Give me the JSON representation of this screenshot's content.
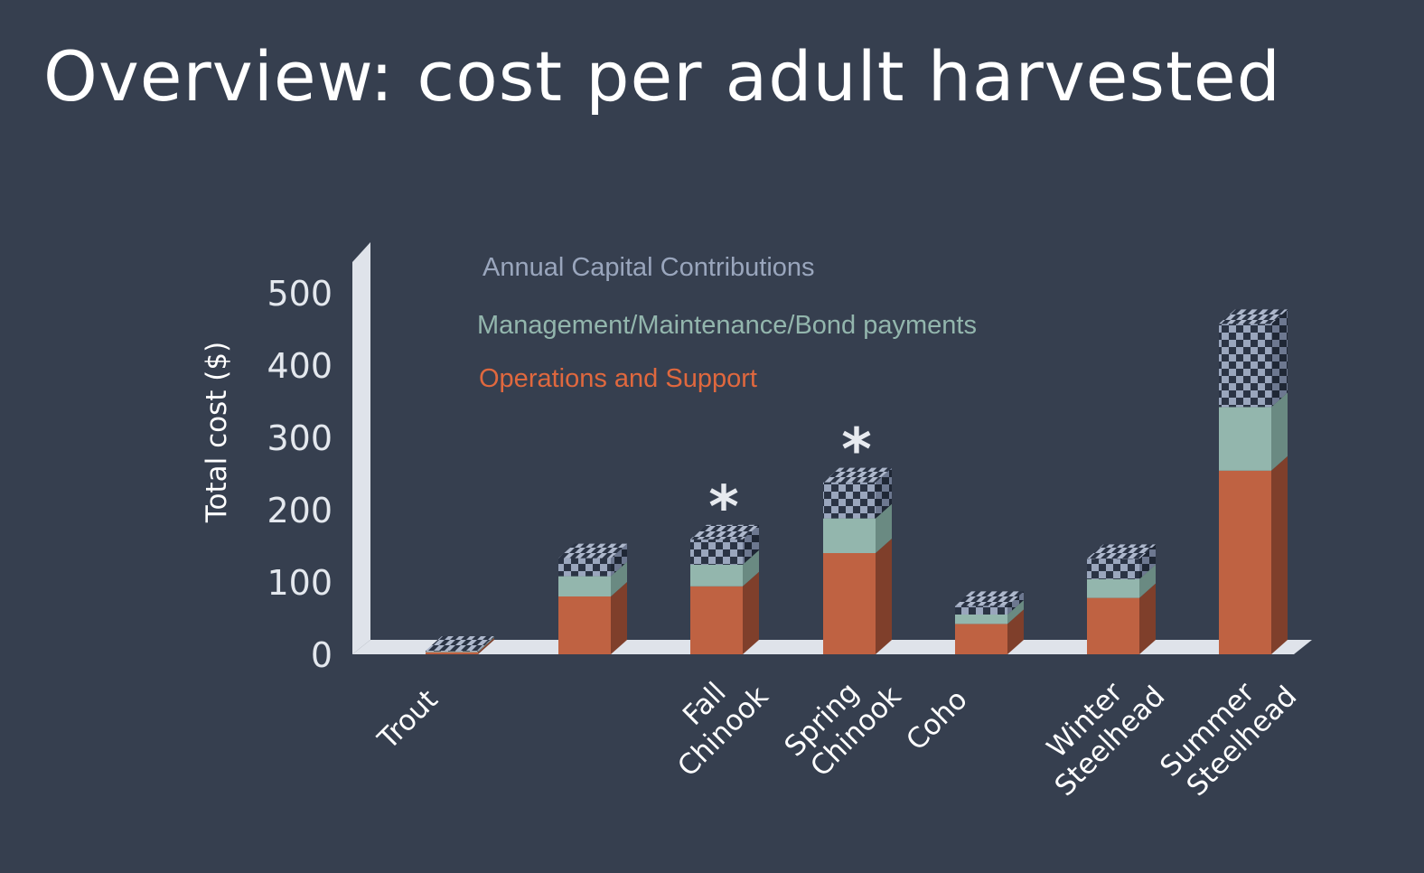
{
  "slide": {
    "title": "Overview: cost per adult harvested"
  },
  "colors": {
    "background": "#363f4f",
    "operations": "#bf6242",
    "management": "#93b6ad",
    "capital_dark": "#2b3445",
    "capital_light": "#9aa6bd",
    "axis": "#dfe3ea"
  },
  "chart_data": {
    "type": "bar",
    "stacked": true,
    "style": "3d",
    "title": "",
    "xlabel": "",
    "ylabel": "Total cost ($)",
    "ylim": [
      0,
      500
    ],
    "yticks": [
      0,
      100,
      200,
      300,
      400,
      500
    ],
    "categories": [
      "Trout",
      "",
      "Fall\nChinook",
      "Spring\nChinook",
      "Coho",
      "Winter\nSteelhead",
      "Summer\nSteelhead"
    ],
    "series": [
      {
        "name": "Operations and Support",
        "values": [
          3,
          80,
          94,
          140,
          42,
          78,
          254
        ]
      },
      {
        "name": "Management/Maintenance/Bond payments",
        "values": [
          1,
          28,
          30,
          48,
          13,
          26,
          88
        ]
      },
      {
        "name": "Annual Capital Contributions",
        "values": [
          1,
          25,
          35,
          50,
          12,
          28,
          115
        ]
      }
    ],
    "annotations": [
      {
        "category": "Fall\nChinook",
        "text": "*"
      },
      {
        "category": "Spring\nChinook",
        "text": "*"
      }
    ],
    "legend_position": "top"
  }
}
